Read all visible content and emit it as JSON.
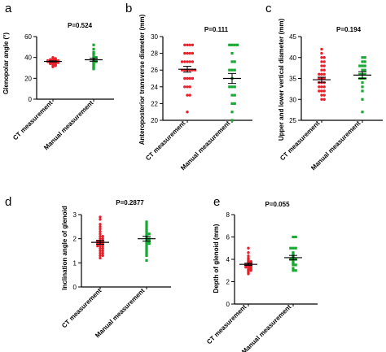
{
  "colors": {
    "ct": "#e8202a",
    "manual": "#17a832",
    "axis": "#000000",
    "error_bar": "#000000"
  },
  "chart_data": [
    {
      "type": "scatter",
      "letter": "a",
      "title": "P=0.524",
      "ylabel": "Glenopolar angle (°)",
      "ylim": [
        0,
        60
      ],
      "yticks": [
        "0",
        "20",
        "40",
        "60"
      ],
      "categories": [
        "CT measurement",
        "Manual measurement"
      ],
      "grid": false,
      "series": [
        {
          "values": [
            40,
            39,
            39,
            38,
            38,
            38,
            37,
            37,
            37,
            37,
            37,
            36,
            36,
            36,
            36,
            36,
            35,
            35,
            35,
            35,
            34,
            34,
            34,
            33,
            33,
            32,
            32,
            31
          ],
          "mean": 36.2,
          "sem": 0.5
        },
        {
          "values": [
            52,
            48,
            45,
            44,
            43,
            41,
            40,
            40,
            39,
            38,
            37,
            36,
            36,
            35,
            34,
            33,
            32,
            31,
            30,
            29
          ],
          "mean": 37.8,
          "sem": 1.4
        }
      ]
    },
    {
      "type": "scatter",
      "letter": "b",
      "title": "P=0.111",
      "ylabel": "Anteroposterior transverse diameter (mm)",
      "ylim": [
        20,
        30
      ],
      "yticks": [
        "20",
        "22",
        "24",
        "26",
        "28",
        "30"
      ],
      "categories": [
        "CT measurement",
        "Manual measurement"
      ],
      "grid": false,
      "series": [
        {
          "values": [
            29,
            29,
            29,
            29,
            28,
            28,
            28,
            28,
            27,
            27,
            27,
            27,
            27,
            26,
            26,
            26,
            26,
            26,
            26,
            25,
            25,
            25,
            25,
            24,
            24,
            24,
            23,
            23,
            21
          ],
          "mean": 26.1,
          "sem": 0.35
        },
        {
          "values": [
            29,
            29,
            29,
            29,
            28,
            27,
            27,
            26,
            26,
            26,
            25,
            24,
            24,
            24,
            23,
            23,
            22,
            22,
            21,
            20
          ],
          "mean": 25.0,
          "sem": 0.6
        }
      ]
    },
    {
      "type": "scatter",
      "letter": "c",
      "title": "P=0.194",
      "ylabel": "Upper and lower vertical diameter (mm)",
      "ylim": [
        25,
        45
      ],
      "yticks": [
        "25",
        "30",
        "35",
        "40",
        "45"
      ],
      "categories": [
        "CT measurement",
        "Manual measurement"
      ],
      "grid": false,
      "series": [
        {
          "values": [
            42,
            41,
            40,
            40,
            39,
            39,
            38,
            38,
            37,
            37,
            36,
            36,
            36,
            35,
            35,
            35,
            34,
            34,
            34,
            33,
            33,
            33,
            32,
            32,
            32,
            31,
            31,
            30,
            30
          ],
          "mean": 34.7,
          "sem": 0.6
        },
        {
          "values": [
            40,
            40,
            39,
            39,
            38,
            38,
            38,
            37,
            37,
            36,
            36,
            36,
            35,
            35,
            35,
            34,
            33,
            32,
            30,
            27
          ],
          "mean": 35.8,
          "sem": 0.8
        }
      ]
    },
    {
      "type": "scatter",
      "letter": "d",
      "title": "P=0.2877",
      "ylabel": "Inclination angle of glenoid",
      "ylim": [
        0,
        3
      ],
      "yticks": [
        "0",
        "1",
        "2",
        "3"
      ],
      "categories": [
        "CT measurement",
        "Manual measurement"
      ],
      "grid": false,
      "series": [
        {
          "values": [
            2.9,
            2.8,
            2.6,
            2.5,
            2.4,
            2.3,
            2.2,
            2.1,
            2.1,
            2.0,
            2.0,
            1.9,
            1.9,
            1.9,
            1.8,
            1.8,
            1.8,
            1.7,
            1.7,
            1.7,
            1.6,
            1.6,
            1.5,
            1.5,
            1.4,
            1.4,
            1.3,
            1.3,
            1.2
          ],
          "mean": 1.85,
          "sem": 0.08
        },
        {
          "values": [
            2.7,
            2.6,
            2.5,
            2.4,
            2.3,
            2.2,
            2.2,
            2.1,
            2.0,
            2.0,
            1.9,
            1.9,
            1.8,
            1.8,
            1.7,
            1.6,
            1.5,
            1.4,
            1.3,
            1.1
          ],
          "mean": 2.0,
          "sem": 0.1
        }
      ]
    },
    {
      "type": "scatter",
      "letter": "e",
      "title": "P=0.055",
      "ylabel": "Depth of glenoid  (mm)",
      "ylim": [
        0,
        8
      ],
      "yticks": [
        "0",
        "2",
        "4",
        "6",
        "8"
      ],
      "categories": [
        "CT measurement",
        "Manual measurement"
      ],
      "grid": false,
      "series": [
        {
          "values": [
            5.0,
            4.6,
            4.3,
            4.1,
            4.0,
            3.9,
            3.8,
            3.8,
            3.7,
            3.7,
            3.6,
            3.6,
            3.5,
            3.5,
            3.5,
            3.4,
            3.4,
            3.3,
            3.3,
            3.3,
            3.2,
            3.2,
            3.1,
            3.1,
            3.0,
            3.0,
            2.9,
            2.8,
            2.7
          ],
          "mean": 3.55,
          "sem": 0.1
        },
        {
          "values": [
            6.0,
            6.0,
            5.0,
            5.0,
            5.0,
            4.6,
            4.5,
            4.3,
            4.2,
            4.0,
            4.0,
            4.0,
            3.9,
            3.7,
            3.6,
            3.5,
            3.5,
            3.2,
            3.0,
            3.0
          ],
          "mean": 4.15,
          "sem": 0.2
        }
      ]
    }
  ]
}
